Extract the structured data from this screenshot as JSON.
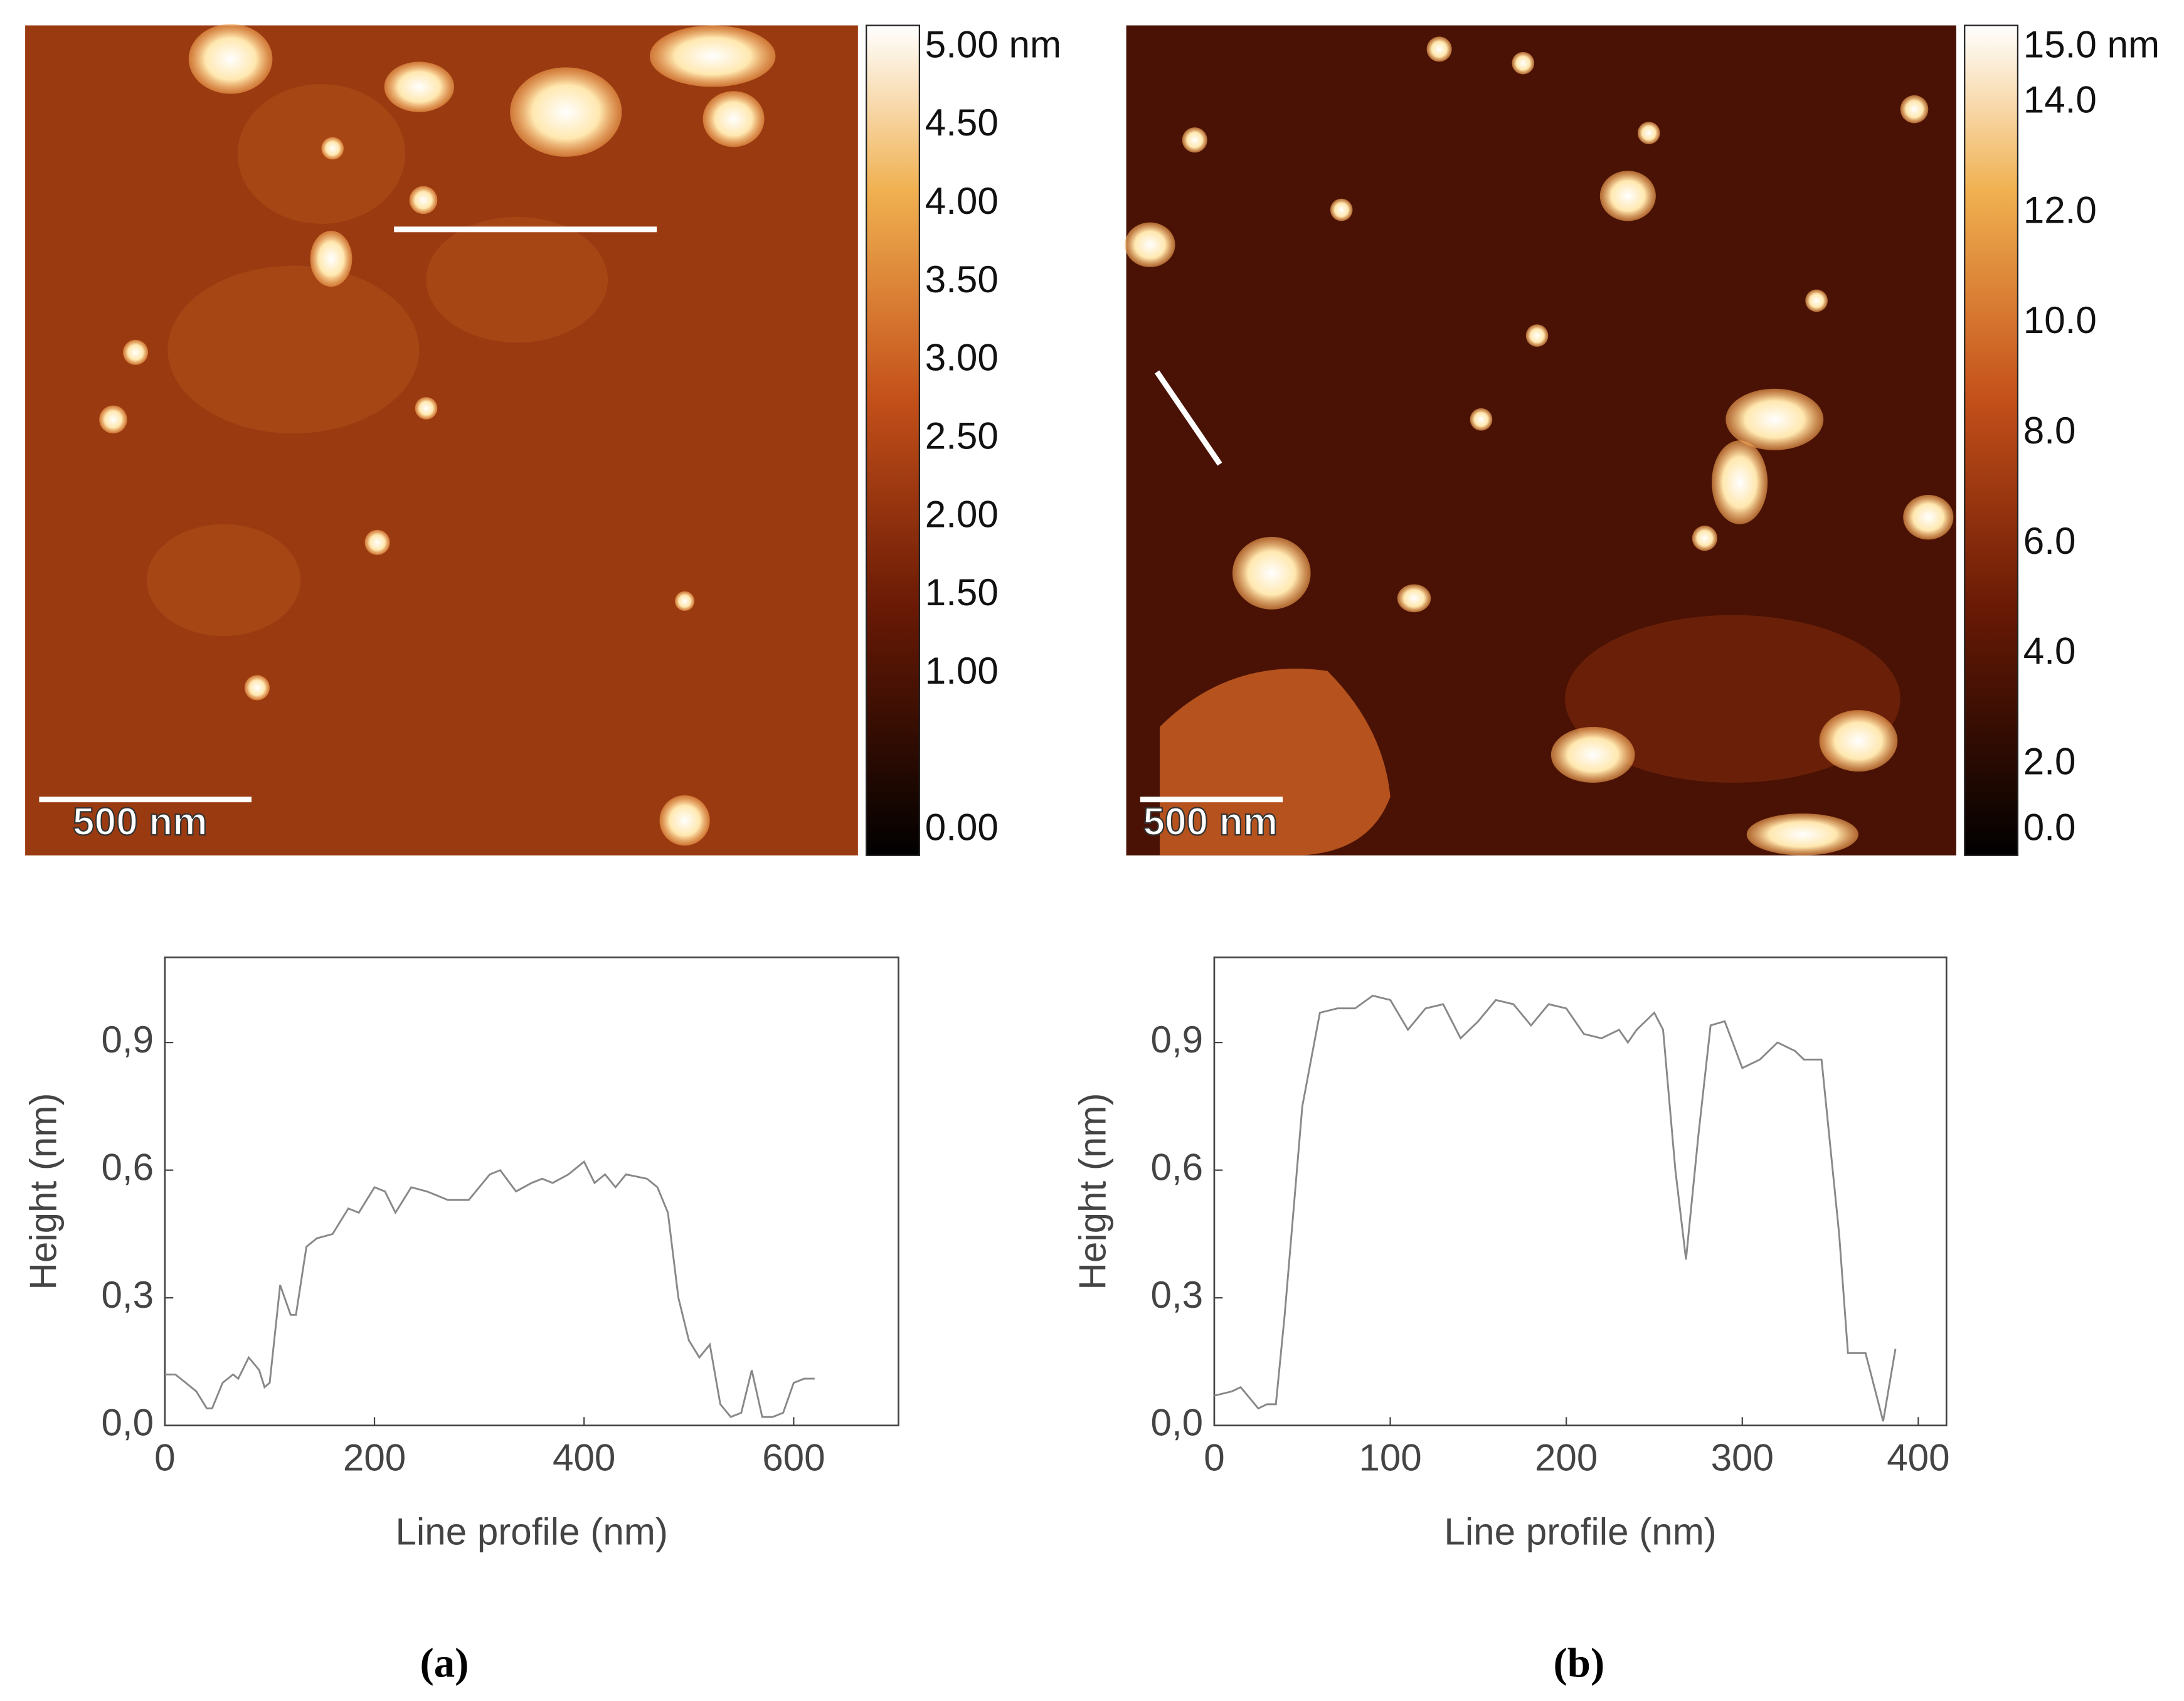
{
  "chart_data": [
    {
      "type": "line",
      "panel_label": "(a)",
      "xlabel": "Line profile (nm)",
      "ylabel": "Height (nm)",
      "xlim": [
        0,
        700
      ],
      "ylim": [
        0,
        1.1
      ],
      "xticks": [
        0,
        200,
        400,
        600
      ],
      "yticks": [
        {
          "value": 0,
          "label": "0,0"
        },
        {
          "value": 0.3,
          "label": "0,3"
        },
        {
          "value": 0.6,
          "label": "0,6"
        },
        {
          "value": 0.9,
          "label": "0,9"
        }
      ],
      "color": "#888888",
      "x": [
        0,
        10,
        20,
        30,
        40,
        45,
        55,
        65,
        70,
        80,
        90,
        95,
        100,
        110,
        120,
        125,
        135,
        145,
        160,
        175,
        185,
        200,
        210,
        220,
        235,
        250,
        260,
        270,
        290,
        310,
        320,
        335,
        350,
        360,
        370,
        385,
        400,
        410,
        420,
        430,
        440,
        460,
        470,
        480,
        490,
        500,
        510,
        520,
        530,
        540,
        550,
        560,
        570,
        580,
        590,
        600,
        610,
        620
      ],
      "values": [
        0.12,
        0.12,
        0.1,
        0.08,
        0.04,
        0.04,
        0.1,
        0.12,
        0.11,
        0.16,
        0.13,
        0.09,
        0.1,
        0.33,
        0.26,
        0.26,
        0.42,
        0.44,
        0.45,
        0.51,
        0.5,
        0.56,
        0.55,
        0.5,
        0.56,
        0.55,
        0.54,
        0.53,
        0.53,
        0.59,
        0.6,
        0.55,
        0.57,
        0.58,
        0.57,
        0.59,
        0.62,
        0.57,
        0.59,
        0.56,
        0.59,
        0.58,
        0.56,
        0.5,
        0.3,
        0.2,
        0.16,
        0.19,
        0.05,
        0.02,
        0.03,
        0.13,
        0.02,
        0.02,
        0.03,
        0.1,
        0.11,
        0.11
      ],
      "image": {
        "scale_bar": "500 nm",
        "colorbar_lim": [
          -0.16,
          5.14
        ],
        "colorbar_ticks": [
          {
            "value": 5,
            "label": "5.00 nm"
          },
          {
            "value": 4.5,
            "label": "4.50"
          },
          {
            "value": 4,
            "label": "4.00"
          },
          {
            "value": 3.5,
            "label": "3.50"
          },
          {
            "value": 3,
            "label": "3.00"
          },
          {
            "value": 2.5,
            "label": "2.50"
          },
          {
            "value": 2,
            "label": "2.00"
          },
          {
            "value": 1.5,
            "label": "1.50"
          },
          {
            "value": 1,
            "label": "1.00"
          },
          {
            "value": 0,
            "label": "0.00"
          }
        ]
      }
    },
    {
      "type": "line",
      "panel_label": "(b)",
      "xlabel": "Line profile (nm)",
      "ylabel": "Height (nm)",
      "xlim": [
        0,
        416
      ],
      "ylim": [
        0,
        1.1
      ],
      "xticks": [
        0,
        100,
        200,
        300,
        400
      ],
      "yticks": [
        {
          "value": 0,
          "label": "0,0"
        },
        {
          "value": 0.3,
          "label": "0,3"
        },
        {
          "value": 0.6,
          "label": "0,6"
        },
        {
          "value": 0.9,
          "label": "0,9"
        }
      ],
      "color": "#888888",
      "x": [
        0,
        10,
        15,
        25,
        30,
        35,
        40,
        50,
        60,
        70,
        80,
        90,
        100,
        110,
        120,
        130,
        140,
        150,
        160,
        170,
        180,
        190,
        200,
        210,
        220,
        230,
        235,
        240,
        250,
        255,
        262,
        268,
        275,
        282,
        290,
        300,
        310,
        320,
        330,
        335,
        345,
        355,
        360,
        370,
        380,
        387
      ],
      "values": [
        0.07,
        0.08,
        0.09,
        0.04,
        0.05,
        0.05,
        0.26,
        0.75,
        0.97,
        0.98,
        0.98,
        1.01,
        1.0,
        0.93,
        0.98,
        0.99,
        0.91,
        0.95,
        1.0,
        0.99,
        0.94,
        0.99,
        0.98,
        0.92,
        0.91,
        0.93,
        0.9,
        0.93,
        0.97,
        0.93,
        0.6,
        0.39,
        0.68,
        0.94,
        0.95,
        0.84,
        0.86,
        0.9,
        0.88,
        0.86,
        0.86,
        0.45,
        0.17,
        0.17,
        0.01,
        0.18
      ],
      "image": {
        "scale_bar": "500 nm",
        "colorbar_lim": [
          0.35,
          15.4
        ],
        "colorbar_ticks": [
          {
            "value": 15,
            "label": "15.0 nm"
          },
          {
            "value": 14,
            "label": "14.0"
          },
          {
            "value": 12,
            "label": "12.0"
          },
          {
            "value": 10,
            "label": "10.0"
          },
          {
            "value": 8,
            "label": "8.0"
          },
          {
            "value": 6,
            "label": "6.0"
          },
          {
            "value": 4,
            "label": "4.0"
          },
          {
            "value": 2,
            "label": "2.0"
          },
          {
            "value": 0,
            "label": "0.0"
          }
        ]
      }
    }
  ]
}
